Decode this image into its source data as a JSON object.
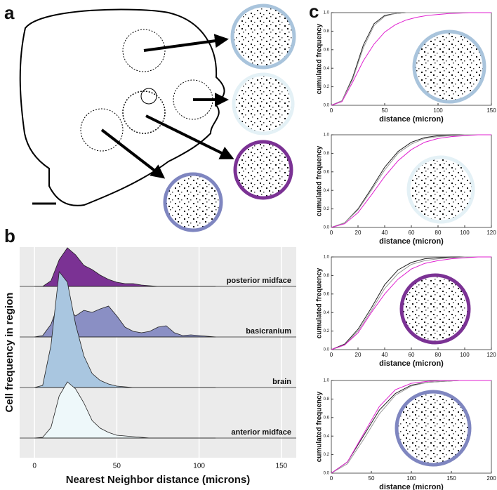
{
  "panels": [
    "a",
    "b",
    "c"
  ],
  "chart_data": [
    {
      "type": "ridgeline",
      "xlabel": "Nearest Neighbor distance (microns)",
      "ylabel": "Cell frequency in region",
      "xlim": [
        -9,
        159
      ],
      "xticks": [
        0,
        50,
        100,
        150
      ],
      "grid": true,
      "x": [
        0,
        5,
        10,
        15,
        20,
        25,
        30,
        35,
        40,
        45,
        50,
        55,
        60,
        65,
        70,
        75,
        80,
        85,
        90,
        95,
        100,
        105,
        110
      ],
      "series": [
        {
          "name": "posterior midface",
          "color": "#7b3294",
          "values": [
            0,
            0,
            8,
            38,
            55,
            45,
            30,
            24,
            16,
            10,
            6,
            4,
            4,
            2,
            1,
            0,
            0,
            0,
            0,
            0,
            0,
            0,
            0
          ]
        },
        {
          "name": "basicranium",
          "color": "#8a8fc4",
          "values": [
            0,
            2,
            18,
            50,
            40,
            30,
            38,
            35,
            40,
            44,
            30,
            14,
            8,
            6,
            8,
            14,
            16,
            6,
            2,
            3,
            2,
            1,
            0
          ]
        },
        {
          "name": "brain",
          "color": "#a9c6e0",
          "values": [
            0,
            3,
            60,
            165,
            150,
            90,
            45,
            20,
            10,
            5,
            2,
            1,
            0,
            0,
            0,
            0,
            0,
            0,
            0,
            0,
            0,
            0,
            0
          ]
        },
        {
          "name": "anterior midface",
          "color": "#eef8fa",
          "values": [
            0,
            1,
            15,
            60,
            80,
            70,
            50,
            25,
            14,
            8,
            4,
            3,
            2,
            1,
            0,
            0,
            0,
            0,
            0,
            0,
            0,
            0,
            0
          ]
        }
      ]
    },
    {
      "type": "line",
      "xlabel": "distance (micron)",
      "ylabel": "cumulated frequency",
      "xlim": [
        0,
        150
      ],
      "xticks": [
        0,
        50,
        100,
        150
      ],
      "ylim": [
        0,
        1
      ],
      "yticks": [
        {
          "value": 0,
          "label": "0.0"
        },
        {
          "value": 0.2,
          "label": "0.2"
        },
        {
          "value": 0.4,
          "label": "0.4"
        },
        {
          "value": 0.6,
          "label": "0.6"
        },
        {
          "value": 0.8,
          "label": "0.8"
        },
        {
          "value": 1,
          "label": "1.0"
        }
      ],
      "x": [
        0,
        10,
        20,
        30,
        40,
        50,
        60,
        70,
        80,
        90,
        100,
        110,
        120,
        130,
        140,
        150
      ],
      "series": [
        {
          "color": "#222222",
          "values": [
            0,
            0.05,
            0.3,
            0.65,
            0.88,
            0.97,
            0.99,
            1,
            1,
            1,
            1,
            1,
            1,
            1,
            1,
            1
          ]
        },
        {
          "color": "#999999",
          "values": [
            0,
            0.05,
            0.28,
            0.62,
            0.86,
            0.96,
            0.99,
            1,
            1,
            1,
            1,
            1,
            1,
            1,
            1,
            1
          ]
        },
        {
          "color": "#e020d0",
          "values": [
            0,
            0.04,
            0.25,
            0.48,
            0.66,
            0.79,
            0.87,
            0.92,
            0.95,
            0.97,
            0.98,
            0.99,
            0.995,
            1,
            1,
            1
          ]
        }
      ]
    },
    {
      "type": "line",
      "xlabel": "distance (micron)",
      "ylabel": "cumulated frequency",
      "xlim": [
        0,
        120
      ],
      "xticks": [
        0,
        20,
        40,
        60,
        80,
        100,
        120
      ],
      "ylim": [
        0,
        1
      ],
      "yticks": [
        {
          "value": 0,
          "label": "0.0"
        },
        {
          "value": 0.2,
          "label": "0.2"
        },
        {
          "value": 0.4,
          "label": "0.4"
        },
        {
          "value": 0.6,
          "label": "0.6"
        },
        {
          "value": 0.8,
          "label": "0.8"
        },
        {
          "value": 1,
          "label": "1.0"
        }
      ],
      "x": [
        0,
        10,
        20,
        30,
        40,
        50,
        60,
        70,
        80,
        90,
        100,
        110,
        120
      ],
      "series": [
        {
          "color": "#222222",
          "values": [
            0,
            0.05,
            0.2,
            0.42,
            0.65,
            0.82,
            0.92,
            0.97,
            0.99,
            1,
            1,
            1,
            1
          ]
        },
        {
          "color": "#999999",
          "values": [
            0,
            0.05,
            0.19,
            0.4,
            0.62,
            0.8,
            0.9,
            0.96,
            0.98,
            0.99,
            1,
            1,
            1
          ]
        },
        {
          "color": "#e020d0",
          "values": [
            0,
            0.04,
            0.16,
            0.35,
            0.55,
            0.72,
            0.84,
            0.92,
            0.96,
            0.98,
            0.99,
            1,
            1
          ]
        }
      ]
    },
    {
      "type": "line",
      "xlabel": "distance (micron)",
      "ylabel": "cumulated frequency",
      "xlim": [
        0,
        120
      ],
      "xticks": [
        0,
        20,
        40,
        60,
        80,
        100,
        120
      ],
      "ylim": [
        0,
        1
      ],
      "yticks": [
        {
          "value": 0,
          "label": "0.0"
        },
        {
          "value": 0.2,
          "label": "0.2"
        },
        {
          "value": 0.4,
          "label": "0.4"
        },
        {
          "value": 0.6,
          "label": "0.6"
        },
        {
          "value": 0.8,
          "label": "0.8"
        },
        {
          "value": 1,
          "label": "1.0"
        }
      ],
      "x": [
        0,
        10,
        20,
        30,
        40,
        50,
        60,
        70,
        80,
        90,
        100,
        110,
        120
      ],
      "series": [
        {
          "color": "#222222",
          "values": [
            0,
            0.06,
            0.22,
            0.45,
            0.7,
            0.86,
            0.94,
            0.98,
            0.99,
            1,
            1,
            1,
            1
          ]
        },
        {
          "color": "#999999",
          "values": [
            0,
            0.05,
            0.2,
            0.42,
            0.66,
            0.82,
            0.92,
            0.96,
            0.98,
            0.99,
            1,
            1,
            1
          ]
        },
        {
          "color": "#e020d0",
          "values": [
            0,
            0.05,
            0.18,
            0.4,
            0.6,
            0.76,
            0.87,
            0.93,
            0.96,
            0.98,
            0.99,
            1,
            1
          ]
        }
      ]
    },
    {
      "type": "line",
      "xlabel": "distance (micron)",
      "ylabel": "cumulated frequency",
      "xlim": [
        0,
        200
      ],
      "xticks": [
        0,
        50,
        100,
        150,
        200
      ],
      "ylim": [
        0,
        1
      ],
      "yticks": [
        {
          "value": 0,
          "label": "0.0"
        },
        {
          "value": 0.2,
          "label": "0.2"
        },
        {
          "value": 0.4,
          "label": "0.4"
        },
        {
          "value": 0.6,
          "label": "0.6"
        },
        {
          "value": 0.8,
          "label": "0.8"
        },
        {
          "value": 1,
          "label": "1.0"
        }
      ],
      "x": [
        0,
        20,
        40,
        60,
        80,
        100,
        120,
        140,
        160,
        180,
        200
      ],
      "series": [
        {
          "color": "#222222",
          "values": [
            0,
            0.12,
            0.4,
            0.68,
            0.86,
            0.95,
            0.98,
            0.99,
            1,
            1,
            1
          ]
        },
        {
          "color": "#999999",
          "values": [
            0,
            0.1,
            0.36,
            0.64,
            0.84,
            0.94,
            0.98,
            0.99,
            1,
            1,
            1
          ]
        },
        {
          "color": "#e020d0",
          "values": [
            0,
            0.12,
            0.42,
            0.72,
            0.9,
            0.97,
            0.99,
            1,
            1,
            1,
            1
          ]
        }
      ]
    }
  ]
}
